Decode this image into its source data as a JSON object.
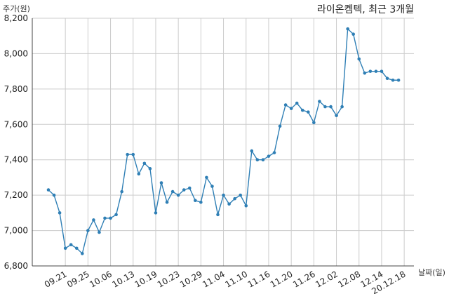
{
  "chart_data": {
    "type": "line",
    "title": "라이온켐텍, 최근 3개월",
    "xlabel": "날짜(일)",
    "ylabel": "주가(원)",
    "ylim": [
      6800,
      8200
    ],
    "y_ticks": [
      6800,
      7000,
      7200,
      7400,
      7600,
      7800,
      8000,
      8200
    ],
    "y_tick_labels": [
      "6,800",
      "7,000",
      "7,200",
      "7,400",
      "7,600",
      "7,800",
      "8,000",
      "8,200"
    ],
    "x_tick_labels": [
      "09.21",
      "09.25",
      "10.06",
      "10.13",
      "10.19",
      "10.23",
      "10.29",
      "11.04",
      "11.10",
      "11.16",
      "11.20",
      "11.26",
      "12.02",
      "12.08",
      "12.14",
      "20.12.18"
    ],
    "x_tick_index": [
      3,
      7,
      11,
      15,
      19,
      23,
      27,
      31,
      35,
      39,
      43,
      47,
      51,
      55,
      59,
      63
    ],
    "grid": true,
    "line_color": "#2f7fb5",
    "series": [
      {
        "values": [
          7230,
          7200,
          7100,
          6900,
          6920,
          6900,
          6870,
          7000,
          7060,
          6990,
          7070,
          7070,
          7090,
          7220,
          7430,
          7430,
          7320,
          7380,
          7350,
          7100,
          7270,
          7160,
          7220,
          7200,
          7230,
          7240,
          7170,
          7160,
          7300,
          7250,
          7090,
          7200,
          7150,
          7180,
          7200,
          7140,
          7450,
          7400,
          7400,
          7420,
          7440,
          7590,
          7710,
          7690,
          7720,
          7680,
          7670,
          7610,
          7730,
          7700,
          7700,
          7650,
          7700,
          8140,
          8110,
          7970,
          7890,
          7900,
          7900,
          7900,
          7860,
          7850,
          7850
        ]
      }
    ]
  }
}
